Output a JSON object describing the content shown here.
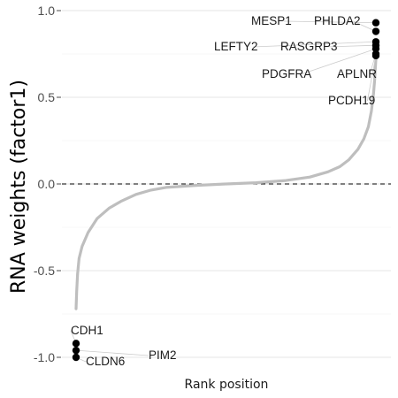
{
  "chart_data": {
    "type": "scatter",
    "title": "",
    "xlabel": "Rank position",
    "ylabel": "RNA weights (factor1)",
    "xlim": [
      0,
      1000
    ],
    "ylim": [
      -1.05,
      1.02
    ],
    "yticks": [
      {
        "value": 1.0,
        "label": "1.0"
      },
      {
        "value": 0.5,
        "label": "0.5"
      },
      {
        "value": 0.0,
        "label": "0.0"
      },
      {
        "value": -0.5,
        "label": "-0.5"
      },
      {
        "value": -1.0,
        "label": "-1.0"
      }
    ],
    "grid": true,
    "reference_line": {
      "y": 0,
      "style": "dashed"
    },
    "curve_color": "#bebebe",
    "highlight_color": "#000000",
    "rank_curve": [
      [
        0,
        -0.72
      ],
      [
        2,
        -0.62
      ],
      [
        5,
        -0.52
      ],
      [
        10,
        -0.43
      ],
      [
        20,
        -0.36
      ],
      [
        40,
        -0.28
      ],
      [
        70,
        -0.2
      ],
      [
        110,
        -0.14
      ],
      [
        150,
        -0.1
      ],
      [
        200,
        -0.06
      ],
      [
        250,
        -0.035
      ],
      [
        300,
        -0.02
      ],
      [
        400,
        -0.008
      ],
      [
        500,
        0.0
      ],
      [
        600,
        0.007
      ],
      [
        700,
        0.02
      ],
      [
        780,
        0.04
      ],
      [
        840,
        0.07
      ],
      [
        880,
        0.1
      ],
      [
        910,
        0.14
      ],
      [
        940,
        0.2
      ],
      [
        960,
        0.26
      ],
      [
        975,
        0.33
      ],
      [
        985,
        0.42
      ],
      [
        992,
        0.52
      ],
      [
        996,
        0.6
      ],
      [
        998,
        0.66
      ],
      [
        1000,
        0.72
      ]
    ],
    "highlighted_genes": [
      {
        "gene": "MESP1",
        "x": 1000,
        "y": 0.93
      },
      {
        "gene": "PHLDA2",
        "x": 1000,
        "y": 0.88
      },
      {
        "gene": "LEFTY2",
        "x": 1000,
        "y": 0.82
      },
      {
        "gene": "RASGRP3",
        "x": 1000,
        "y": 0.8
      },
      {
        "gene": "PDGFRA",
        "x": 1000,
        "y": 0.78
      },
      {
        "gene": "APLNR",
        "x": 1000,
        "y": 0.75
      },
      {
        "gene": "PCDH19",
        "x": 1000,
        "y": 0.74
      },
      {
        "gene": "CDH1",
        "x": 0,
        "y": -0.92
      },
      {
        "gene": "PIM2",
        "x": 0,
        "y": -0.96
      },
      {
        "gene": "CLDN6",
        "x": 0,
        "y": -1.0
      }
    ]
  }
}
